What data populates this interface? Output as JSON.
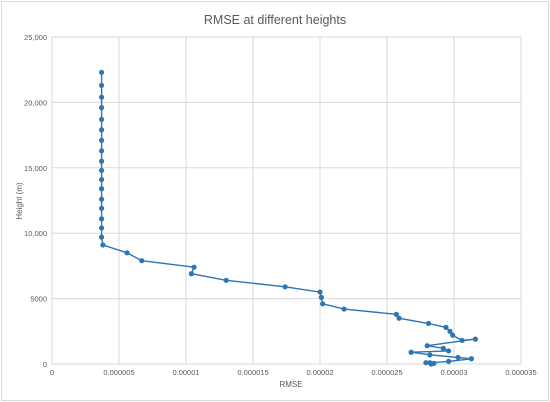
{
  "chart_data": {
    "type": "scatter",
    "title": "RMSE at different heights",
    "xlabel": "RMSE",
    "ylabel": "Height (m)",
    "xlim": [
      0,
      3.5e-05
    ],
    "ylim": [
      0,
      25000
    ],
    "x_ticks": [
      "0",
      "0.000005",
      "0.00001",
      "0.000015",
      "0.00002",
      "0.000025",
      "0.00003",
      "0.000035"
    ],
    "x_tick_values": [
      0,
      5e-06,
      1e-05,
      1.5e-05,
      2e-05,
      2.5e-05,
      3e-05,
      3.5e-05
    ],
    "y_ticks": [
      "0",
      "5000",
      "10,000",
      "15,000",
      "20,000",
      "25,000"
    ],
    "y_tick_values": [
      0,
      5000,
      10000,
      15000,
      20000,
      25000
    ],
    "grid": "vertical and horizontal major gridlines",
    "legend": "none",
    "series_color": "#2e75b6",
    "series": [
      {
        "x": [
          3.7e-06,
          3.7e-06,
          3.7e-06,
          3.7e-06,
          3.7e-06,
          3.7e-06,
          3.7e-06,
          3.7e-06,
          3.7e-06,
          3.7e-06,
          3.7e-06,
          3.7e-06,
          3.7e-06,
          3.7e-06,
          3.7e-06,
          3.7e-06,
          3.7e-06,
          3.8e-06,
          5.6e-06,
          6.7e-06,
          1.06e-05,
          1.04e-05,
          1.3e-05,
          1.74e-05,
          2e-05,
          2.01e-05,
          2.02e-05,
          2.18e-05,
          2.57e-05,
          2.59e-05,
          2.81e-05,
          2.94e-05,
          2.97e-05,
          2.99e-05,
          3.06e-05,
          3.16e-05,
          2.8e-05,
          2.92e-05,
          2.96e-05,
          2.68e-05,
          2.82e-05,
          3.03e-05,
          3.13e-05,
          2.96e-05,
          2.82e-05,
          2.83e-05,
          2.79e-05,
          2.85e-05
        ],
        "y": [
          22300,
          21300,
          20400,
          19600,
          18700,
          17900,
          17100,
          16300,
          15500,
          14800,
          14100,
          13400,
          12600,
          11900,
          11100,
          10400,
          9700,
          9100,
          8500,
          7900,
          7400,
          6900,
          6400,
          5900,
          5500,
          5100,
          4600,
          4200,
          3800,
          3500,
          3100,
          2800,
          2500,
          2200,
          1800,
          1900,
          1400,
          1200,
          1000,
          900,
          700,
          500,
          400,
          200,
          100,
          0,
          100,
          50
        ]
      }
    ]
  }
}
